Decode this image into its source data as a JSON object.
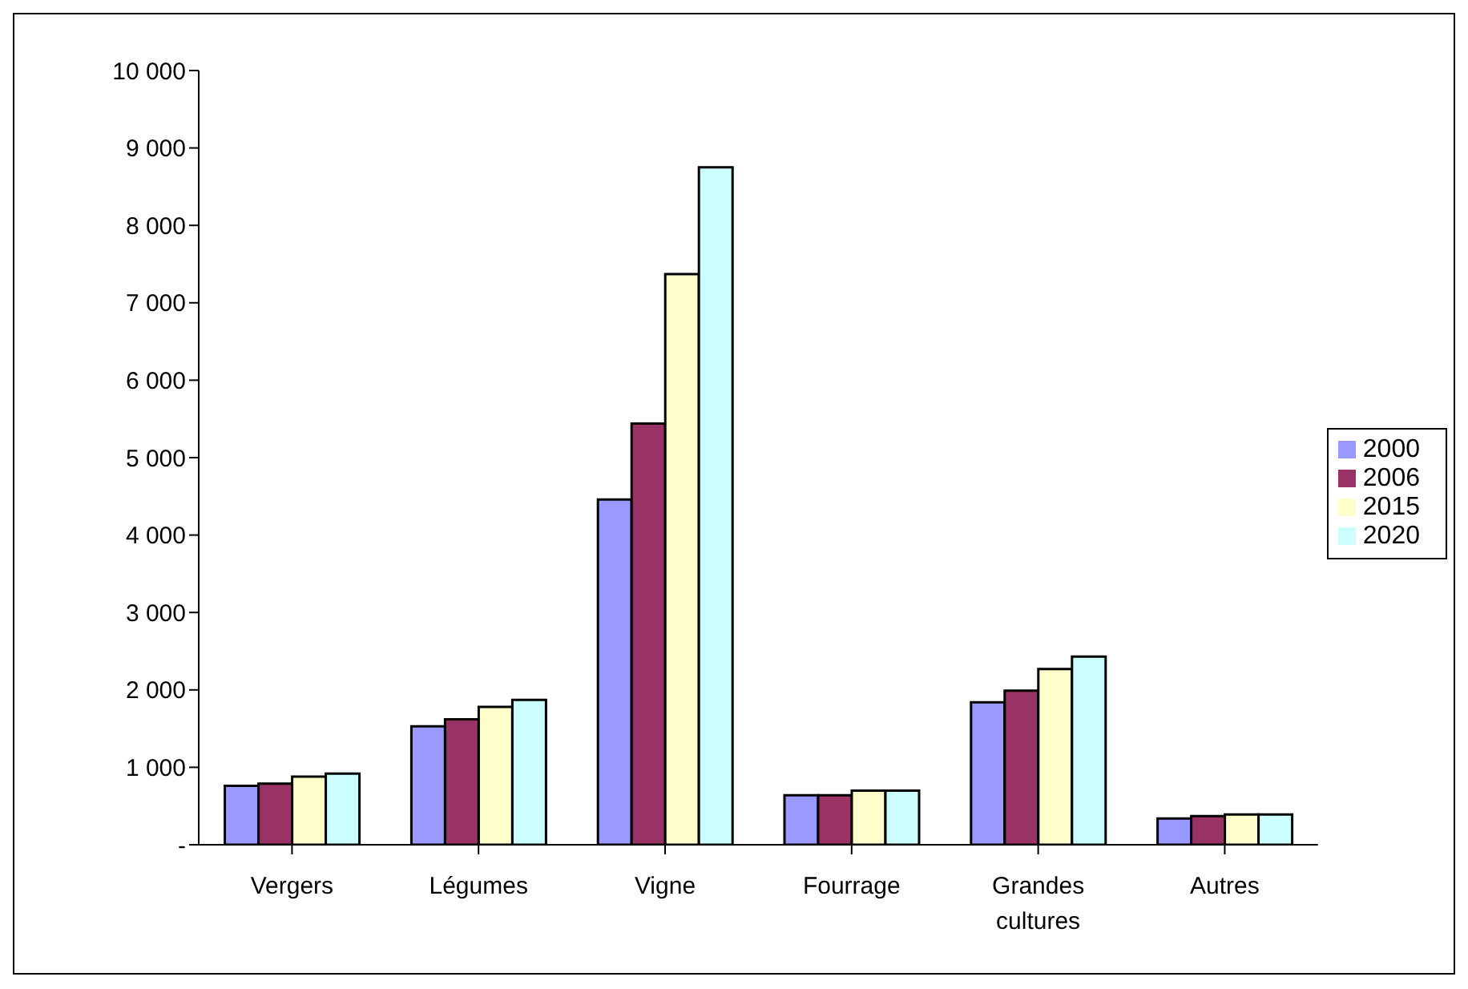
{
  "chart_data": {
    "type": "bar",
    "categories": [
      "Vergers",
      "Légumes",
      "Vigne",
      "Fourrage",
      "Grandes cultures",
      "Autres"
    ],
    "series": [
      {
        "name": "2000",
        "color": "#9999ff",
        "values": [
          760,
          1530,
          4460,
          640,
          1840,
          340
        ]
      },
      {
        "name": "2006",
        "color": "#993366",
        "values": [
          790,
          1620,
          5440,
          640,
          1990,
          370
        ]
      },
      {
        "name": "2015",
        "color": "#ffffcc",
        "values": [
          880,
          1780,
          7370,
          700,
          2270,
          390
        ]
      },
      {
        "name": "2020",
        "color": "#ccffff",
        "values": [
          920,
          1870,
          8750,
          700,
          2430,
          390
        ]
      }
    ],
    "ylim": [
      0,
      10000
    ],
    "yticks": [
      {
        "value": 0,
        "label": "-"
      },
      {
        "value": 1000,
        "label": "1 000"
      },
      {
        "value": 2000,
        "label": "2 000"
      },
      {
        "value": 3000,
        "label": "3 000"
      },
      {
        "value": 4000,
        "label": "4 000"
      },
      {
        "value": 5000,
        "label": "5 000"
      },
      {
        "value": 6000,
        "label": "6 000"
      },
      {
        "value": 7000,
        "label": "7 000"
      },
      {
        "value": 8000,
        "label": "8 000"
      },
      {
        "value": 9000,
        "label": "9 000"
      },
      {
        "value": 10000,
        "label": "10 000"
      }
    ],
    "grid": false,
    "legend": "right"
  }
}
